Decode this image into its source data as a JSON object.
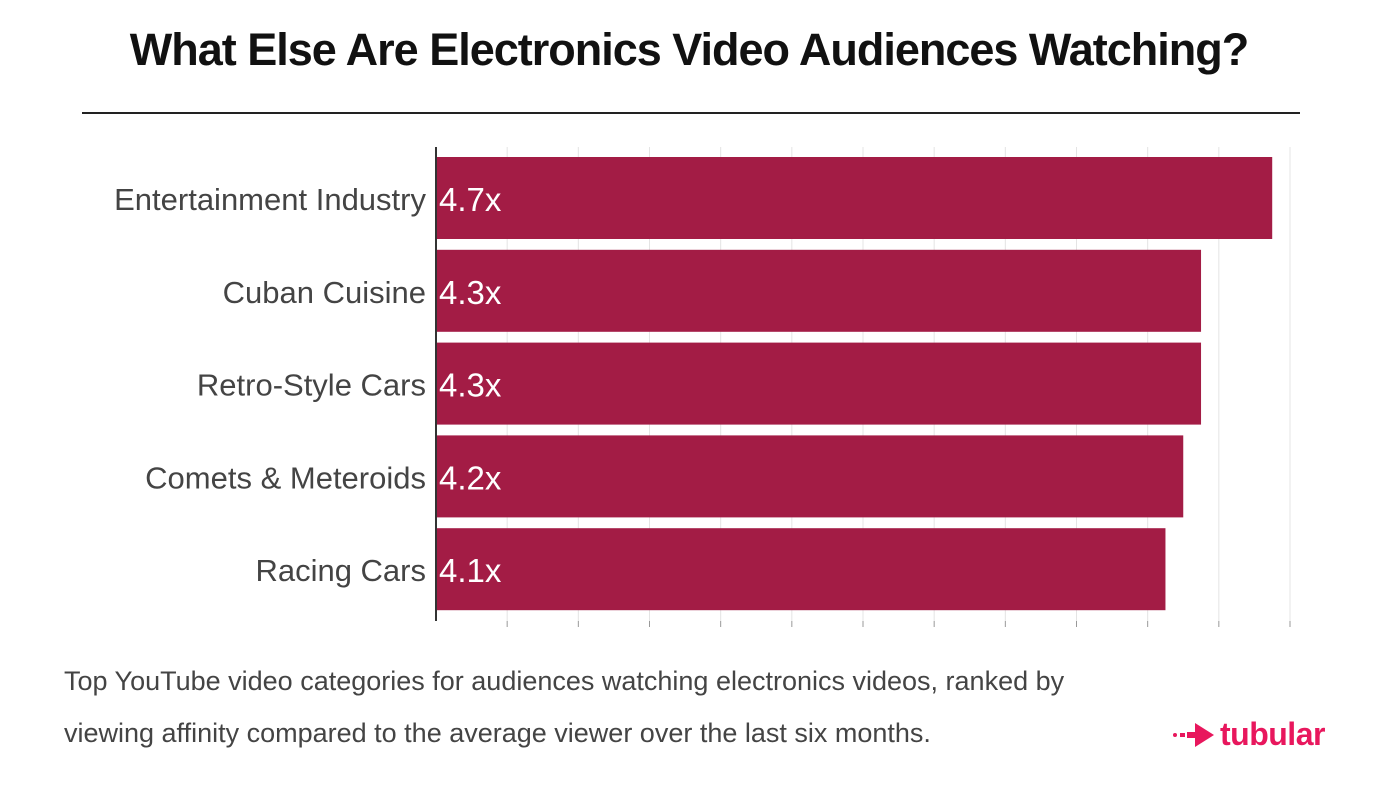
{
  "title": "What Else Are Electronics Video Audiences Watching?",
  "caption": {
    "line1": "Top YouTube video categories for audiences watching electronics videos, ranked by",
    "line2": "viewing affinity compared to the average viewer over the last six months."
  },
  "logo": {
    "text": "tubular",
    "icon": "arrow-right-icon",
    "color": "#e8175d"
  },
  "chart_data": {
    "type": "bar",
    "orientation": "horizontal",
    "title": "What Else Are Electronics Video Audiences Watching?",
    "xlabel": "",
    "ylabel": "",
    "xlim": [
      0,
      4.8
    ],
    "grid": true,
    "bar_color": "#a31c45",
    "categories": [
      "Entertainment Industry",
      "Cuban Cuisine",
      "Retro-Style Cars",
      "Comets & Meteroids",
      "Racing Cars"
    ],
    "values": [
      4.7,
      4.3,
      4.3,
      4.2,
      4.1
    ],
    "data_labels": [
      "4.7x",
      "4.3x",
      "4.3x",
      "4.2x",
      "4.1x"
    ]
  }
}
